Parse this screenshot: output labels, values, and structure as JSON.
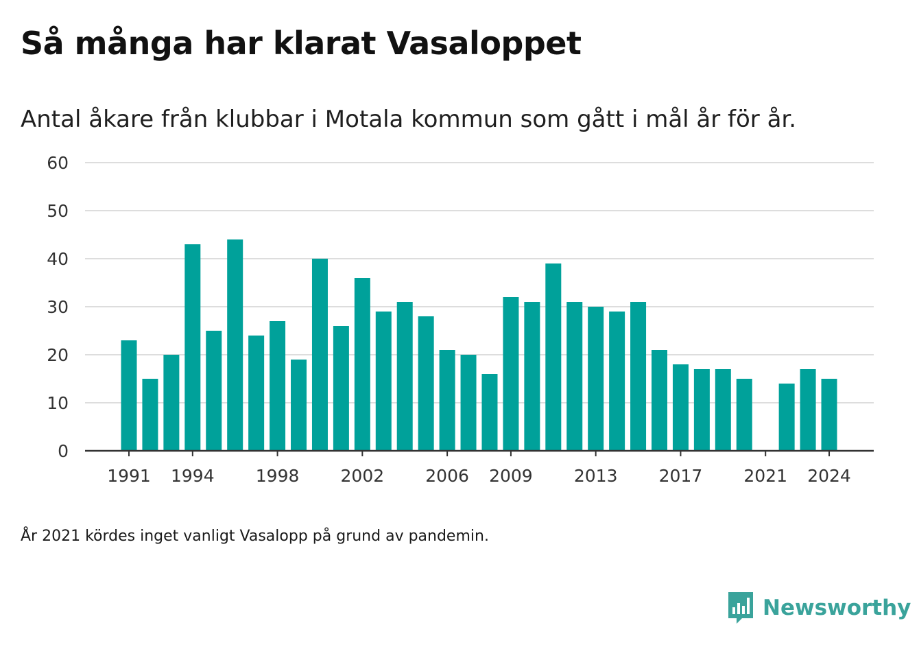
{
  "title": "Så många har klarat Vasaloppet",
  "subtitle": "Antal åkare från klubbar i Motala kommun som gått i mål år för år.",
  "footnote": "År 2021 kördes inget vanligt Vasalopp på grund av pandemin.",
  "brand": {
    "name": "Newsworthy",
    "icon": "newsworthy-logo-icon",
    "color": "#3aa39b"
  },
  "colors": {
    "bar": "#00a19a",
    "grid": "#dddddd",
    "axis": "#333333",
    "text": "#333333"
  },
  "chart_data": {
    "type": "bar",
    "categories": [
      1991,
      1992,
      1993,
      1994,
      1995,
      1996,
      1997,
      1998,
      1999,
      2000,
      2001,
      2002,
      2003,
      2004,
      2005,
      2006,
      2007,
      2008,
      2009,
      2010,
      2011,
      2012,
      2013,
      2014,
      2015,
      2016,
      2017,
      2018,
      2019,
      2020,
      2021,
      2022,
      2023,
      2024
    ],
    "values": [
      23,
      15,
      20,
      43,
      25,
      44,
      24,
      27,
      19,
      40,
      26,
      36,
      29,
      31,
      28,
      21,
      20,
      16,
      32,
      31,
      39,
      31,
      30,
      29,
      31,
      21,
      18,
      17,
      17,
      15,
      null,
      14,
      17,
      15
    ],
    "xticks": [
      "1991",
      "1994",
      "1998",
      "2002",
      "2006",
      "2009",
      "2013",
      "2017",
      "2021",
      "2024"
    ],
    "yticks": [
      "0",
      "10",
      "20",
      "30",
      "40",
      "50",
      "60"
    ],
    "ylim": [
      0,
      60
    ],
    "xlabel": "",
    "ylabel": "",
    "grid": true,
    "legend": "none"
  }
}
